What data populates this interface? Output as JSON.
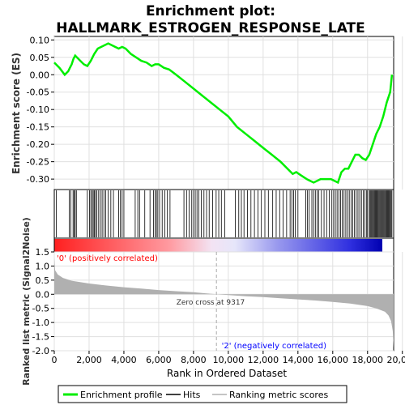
{
  "chart_data": {
    "type": "line",
    "title_line1": "Enrichment plot:",
    "title_line2": "HALLMARK_ESTROGEN_RESPONSE_LATE",
    "xlabel": "Rank in Ordered Dataset",
    "xlim": [
      0,
      19500
    ],
    "x_ticks": [
      0,
      2000,
      4000,
      6000,
      8000,
      10000,
      12000,
      14000,
      16000,
      18000,
      20000
    ],
    "x_tick_labels": [
      "0",
      "2,000",
      "4,000",
      "6,000",
      "8,000",
      "10,000",
      "12,000",
      "14,000",
      "16,000",
      "18,000",
      "20,000"
    ],
    "es_panel": {
      "ylabel": "Enrichment score (ES)",
      "ylim": [
        -0.33,
        0.11
      ],
      "y_ticks": [
        0.1,
        0.05,
        0.0,
        -0.05,
        -0.1,
        -0.15,
        -0.2,
        -0.25,
        -0.3
      ],
      "y_tick_labels": [
        "0.10",
        "0.05",
        "0.00",
        "-0.05",
        "-0.10",
        "-0.15",
        "-0.20",
        "-0.25",
        "-0.30"
      ],
      "series": [
        {
          "name": "Enrichment profile",
          "color": "#00ee00",
          "x": [
            0,
            300,
            600,
            800,
            900,
            1000,
            1100,
            1200,
            1300,
            1500,
            1700,
            1900,
            2100,
            2300,
            2500,
            2700,
            2900,
            3100,
            3300,
            3500,
            3700,
            3900,
            4100,
            4400,
            4700,
            5000,
            5300,
            5600,
            5800,
            6000,
            6300,
            6600,
            7000,
            7500,
            8000,
            8500,
            9000,
            9500,
            10000,
            10500,
            11000,
            11500,
            12000,
            12500,
            13000,
            13400,
            13700,
            13900,
            14200,
            14500,
            14700,
            14900,
            15100,
            15300,
            15500,
            15700,
            15900,
            16100,
            16300,
            16500,
            16700,
            16900,
            17100,
            17300,
            17500,
            17700,
            17900,
            18100,
            18300,
            18500,
            18700,
            18900,
            19100,
            19300,
            19400
          ],
          "y": [
            0.035,
            0.02,
            0.0,
            0.01,
            0.02,
            0.03,
            0.045,
            0.055,
            0.05,
            0.04,
            0.03,
            0.025,
            0.04,
            0.06,
            0.075,
            0.08,
            0.085,
            0.09,
            0.085,
            0.08,
            0.075,
            0.08,
            0.075,
            0.06,
            0.05,
            0.04,
            0.035,
            0.025,
            0.03,
            0.03,
            0.02,
            0.015,
            0.0,
            -0.02,
            -0.04,
            -0.06,
            -0.08,
            -0.1,
            -0.12,
            -0.15,
            -0.17,
            -0.19,
            -0.21,
            -0.23,
            -0.25,
            -0.27,
            -0.285,
            -0.28,
            -0.29,
            -0.3,
            -0.305,
            -0.31,
            -0.305,
            -0.3,
            -0.3,
            -0.3,
            -0.3,
            -0.305,
            -0.31,
            -0.28,
            -0.27,
            -0.27,
            -0.25,
            -0.23,
            -0.23,
            -0.24,
            -0.245,
            -0.23,
            -0.2,
            -0.17,
            -0.15,
            -0.12,
            -0.08,
            -0.05,
            0.0
          ]
        }
      ]
    },
    "hits_panel": {
      "hits": [
        120,
        860,
        950,
        1080,
        1150,
        1200,
        1270,
        1900,
        2020,
        2100,
        2180,
        2240,
        2300,
        2370,
        2450,
        2550,
        2650,
        2750,
        2850,
        2950,
        3100,
        3250,
        3400,
        3700,
        3800,
        3900,
        4000,
        4650,
        4800,
        4900,
        5200,
        5500,
        5700,
        5800,
        5870,
        5950,
        6050,
        6200,
        6350,
        6500,
        6650,
        7450,
        7600,
        7750,
        7900,
        8000,
        8100,
        8200,
        8300,
        8450,
        8600,
        8750,
        8900,
        9100,
        9300,
        9450,
        9600,
        9800,
        10400,
        10600,
        10750,
        10900,
        11100,
        11300,
        11500,
        11700,
        11900,
        12100,
        12300,
        12550,
        12750,
        12950,
        13150,
        13350,
        13550,
        13650,
        13750,
        13850,
        14000,
        14450,
        14550,
        14650,
        14800,
        14900,
        15000,
        15100,
        15200,
        15350,
        15500,
        15650,
        15800,
        15950,
        16050,
        16150,
        16250,
        16350,
        16450,
        16550,
        16650,
        16750,
        16850,
        16950,
        17050,
        17150,
        17250,
        17350,
        17450,
        17550,
        17650,
        17750,
        17850,
        17950,
        18000,
        18100,
        18150,
        18200,
        18250,
        18300,
        18350,
        18400,
        18450,
        18500,
        18550,
        18600,
        18650,
        18700,
        18750,
        18800,
        18850,
        18900,
        18950,
        19000,
        19050,
        19100,
        19150,
        19200,
        19250,
        19300,
        19350,
        19400
      ]
    },
    "metric_panel": {
      "ylabel": "Ranked list metric (Signal2Noise)",
      "ylim": [
        -2.0,
        1.5
      ],
      "y_ticks": [
        1.5,
        1.0,
        0.5,
        0.0,
        -0.5,
        -1.0,
        -1.5,
        -2.0
      ],
      "y_tick_labels": [
        "1.5",
        "1.0",
        "0.5",
        "0.0",
        "-0.5",
        "-1.0",
        "-1.5",
        "-2.0"
      ],
      "x": [
        0,
        50,
        200,
        500,
        1000,
        2000,
        3000,
        4000,
        5000,
        6000,
        7000,
        8000,
        9317,
        10000,
        11000,
        12000,
        13000,
        14000,
        15000,
        16000,
        17000,
        18000,
        18500,
        19000,
        19200,
        19350,
        19450,
        19500
      ],
      "values": [
        1.3,
        0.85,
        0.7,
        0.58,
        0.48,
        0.38,
        0.31,
        0.25,
        0.2,
        0.15,
        0.11,
        0.07,
        0.0,
        -0.03,
        -0.07,
        -0.1,
        -0.14,
        -0.18,
        -0.22,
        -0.27,
        -0.33,
        -0.42,
        -0.5,
        -0.62,
        -0.75,
        -0.95,
        -1.3,
        -1.9
      ],
      "fill_color": "#b0b0b0",
      "zero_cross_label": "Zero cross at 9317",
      "zero_cross_x": 9317,
      "pos_label": "'0' (positively correlated)",
      "neg_label": "'2' (negatively correlated)",
      "pos_color": "#ff0000",
      "neg_color": "#0000ff"
    },
    "legend": {
      "placement": "bottom",
      "items": [
        {
          "label": "Enrichment profile",
          "color": "#00ee00"
        },
        {
          "label": "Hits",
          "color": "#000000"
        },
        {
          "label": "Ranking metric scores",
          "color": "#b0b0b0"
        }
      ]
    }
  }
}
